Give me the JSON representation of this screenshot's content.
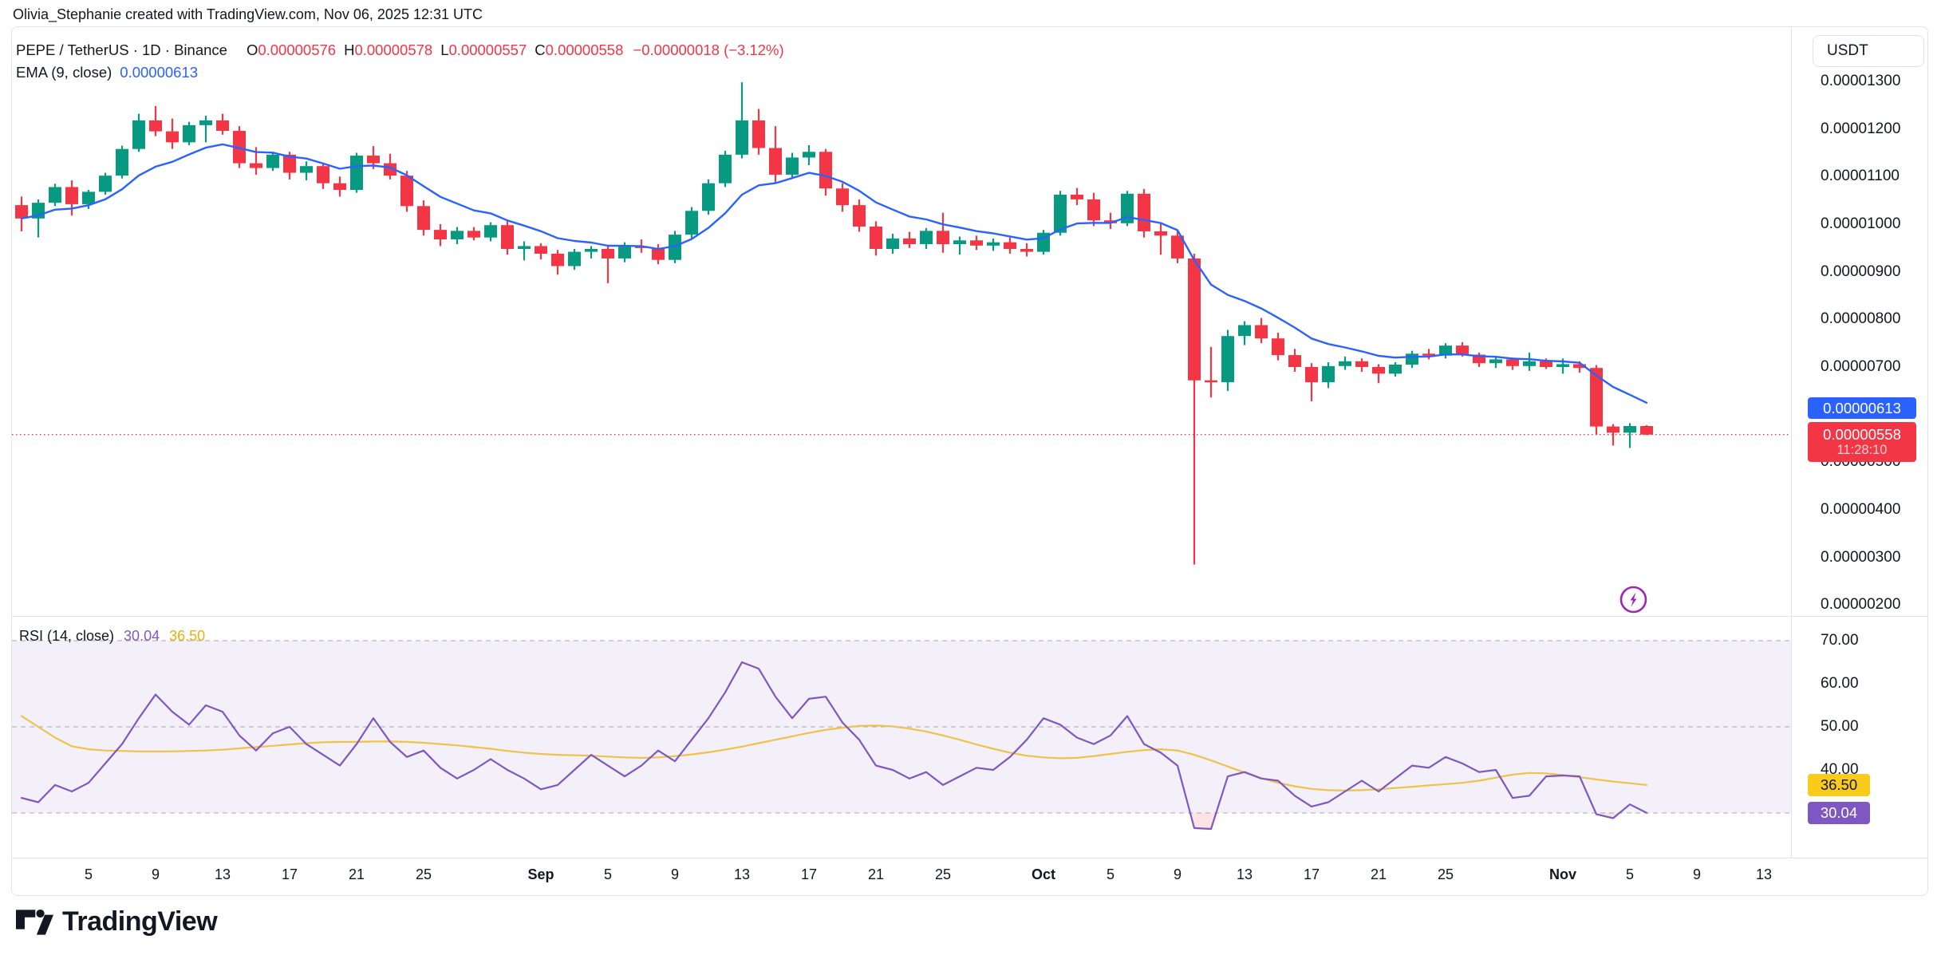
{
  "header": {
    "title": "Olivia_Stephanie created with TradingView.com, Nov 06, 2025 12:31 UTC"
  },
  "toolbar": {
    "currency_button": "USDT"
  },
  "legend": {
    "symbol": "PEPE / TetherUS · 1D · Binance",
    "ohlc": {
      "o_label": "O",
      "o": "0.00000576",
      "h_label": "H",
      "h": "0.00000578",
      "l_label": "L",
      "l": "0.00000557",
      "c_label": "C",
      "c": "0.00000558",
      "change": "−0.00000018 (−3.12%)"
    },
    "ema": {
      "label": "EMA (9, close)",
      "value": "0.00000613"
    }
  },
  "price_axis": {
    "labels": [
      {
        "text": "0.00001300",
        "v": 1300
      },
      {
        "text": "0.00001200",
        "v": 1200
      },
      {
        "text": "0.00001100",
        "v": 1100
      },
      {
        "text": "0.00001000",
        "v": 1000
      },
      {
        "text": "0.00000900",
        "v": 900
      },
      {
        "text": "0.00000800",
        "v": 800
      },
      {
        "text": "0.00000700",
        "v": 700
      },
      {
        "text": "0.00000500",
        "v": 500
      },
      {
        "text": "0.00000400",
        "v": 400
      },
      {
        "text": "0.00000300",
        "v": 300
      },
      {
        "text": "0.00000200",
        "v": 200
      }
    ],
    "ema_badge": "0.00000613",
    "price_badge": "0.00000558",
    "countdown": "11:28:10"
  },
  "rsi_panel": {
    "legend_label": "RSI (14, close)",
    "rsi_value": "30.04",
    "ma_value": "36.50",
    "axis_labels": [
      {
        "text": "70.00",
        "r": 70
      },
      {
        "text": "60.00",
        "r": 60
      },
      {
        "text": "50.00",
        "r": 50
      },
      {
        "text": "40.00",
        "r": 40
      }
    ]
  },
  "time_axis": {
    "labels": [
      {
        "text": "5",
        "i": 4
      },
      {
        "text": "9",
        "i": 8
      },
      {
        "text": "13",
        "i": 12
      },
      {
        "text": "17",
        "i": 16
      },
      {
        "text": "21",
        "i": 20
      },
      {
        "text": "25",
        "i": 24
      },
      {
        "text": "Sep",
        "i": 31,
        "month": true
      },
      {
        "text": "5",
        "i": 35
      },
      {
        "text": "9",
        "i": 39
      },
      {
        "text": "13",
        "i": 43
      },
      {
        "text": "17",
        "i": 47
      },
      {
        "text": "21",
        "i": 51
      },
      {
        "text": "25",
        "i": 55
      },
      {
        "text": "Oct",
        "i": 61,
        "month": true
      },
      {
        "text": "5",
        "i": 65
      },
      {
        "text": "9",
        "i": 69
      },
      {
        "text": "13",
        "i": 73
      },
      {
        "text": "17",
        "i": 77
      },
      {
        "text": "21",
        "i": 81
      },
      {
        "text": "25",
        "i": 85
      },
      {
        "text": "Nov",
        "i": 92,
        "month": true
      },
      {
        "text": "5",
        "i": 96
      },
      {
        "text": "9",
        "i": 100
      },
      {
        "text": "13",
        "i": 104
      }
    ]
  },
  "footer": {
    "logo_text": "TradingView"
  },
  "colors": {
    "up": "#089981",
    "down": "#F23645",
    "ema": "#2962FF",
    "rsi_line": "#7E57C2",
    "rsi_ma_line": "#EFC24A",
    "rsi_band_fill": "rgba(126,87,194,0.09)",
    "oversold_fill": "rgba(242,54,69,0.14)",
    "grid_dash": "#A7AAB2",
    "separator": "#E0E3EB",
    "badge_blue": "#2962FF",
    "badge_red": "#F23645",
    "badge_yellow": "#F8CB1C",
    "badge_purple": "#7E57C2",
    "flash_icon": "#9C27B0",
    "price_line": "#F23645"
  },
  "chart_data": {
    "type": "candlestick",
    "title": "PEPE / TetherUS · 1D · Binance",
    "price_unit_note": "OHLC values are ×1e-8 USDT (1040 = 0.00001040); consecutive daily bars Aug 1 – Nov 6, 2025",
    "ylim": [
      200,
      1300
    ],
    "current_price": 558,
    "candles": [
      [
        1040,
        1058,
        985,
        1012
      ],
      [
        1012,
        1052,
        972,
        1045
      ],
      [
        1045,
        1085,
        1038,
        1078
      ],
      [
        1078,
        1092,
        1018,
        1042
      ],
      [
        1042,
        1072,
        1032,
        1068
      ],
      [
        1068,
        1108,
        1062,
        1102
      ],
      [
        1102,
        1165,
        1096,
        1158
      ],
      [
        1158,
        1232,
        1152,
        1218
      ],
      [
        1218,
        1248,
        1185,
        1195
      ],
      [
        1195,
        1222,
        1158,
        1172
      ],
      [
        1172,
        1215,
        1166,
        1208
      ],
      [
        1208,
        1228,
        1172,
        1218
      ],
      [
        1218,
        1232,
        1188,
        1196
      ],
      [
        1196,
        1206,
        1118,
        1128
      ],
      [
        1128,
        1162,
        1104,
        1118
      ],
      [
        1118,
        1152,
        1112,
        1146
      ],
      [
        1146,
        1152,
        1094,
        1108
      ],
      [
        1108,
        1132,
        1092,
        1122
      ],
      [
        1122,
        1128,
        1074,
        1086
      ],
      [
        1086,
        1100,
        1058,
        1072
      ],
      [
        1072,
        1150,
        1066,
        1144
      ],
      [
        1144,
        1164,
        1116,
        1128
      ],
      [
        1128,
        1148,
        1094,
        1102
      ],
      [
        1102,
        1112,
        1026,
        1038
      ],
      [
        1038,
        1050,
        976,
        988
      ],
      [
        988,
        1000,
        954,
        968
      ],
      [
        968,
        994,
        958,
        986
      ],
      [
        986,
        994,
        966,
        972
      ],
      [
        972,
        1004,
        964,
        998
      ],
      [
        998,
        1008,
        936,
        948
      ],
      [
        948,
        964,
        924,
        954
      ],
      [
        954,
        960,
        926,
        938
      ],
      [
        938,
        946,
        894,
        912
      ],
      [
        912,
        948,
        904,
        942
      ],
      [
        942,
        954,
        928,
        948
      ],
      [
        948,
        956,
        876,
        928
      ],
      [
        928,
        962,
        920,
        954
      ],
      [
        954,
        968,
        940,
        950
      ],
      [
        950,
        958,
        916,
        925
      ],
      [
        925,
        986,
        918,
        978
      ],
      [
        978,
        1036,
        970,
        1028
      ],
      [
        1028,
        1094,
        1020,
        1086
      ],
      [
        1086,
        1154,
        1078,
        1146
      ],
      [
        1146,
        1298,
        1138,
        1218
      ],
      [
        1218,
        1242,
        1146,
        1160
      ],
      [
        1160,
        1206,
        1088,
        1104
      ],
      [
        1104,
        1150,
        1096,
        1140
      ],
      [
        1140,
        1166,
        1124,
        1152
      ],
      [
        1152,
        1158,
        1060,
        1075
      ],
      [
        1075,
        1086,
        1026,
        1040
      ],
      [
        1040,
        1052,
        984,
        995
      ],
      [
        995,
        1006,
        934,
        948
      ],
      [
        948,
        980,
        938,
        970
      ],
      [
        970,
        984,
        950,
        958
      ],
      [
        958,
        992,
        948,
        986
      ],
      [
        986,
        1024,
        940,
        958
      ],
      [
        958,
        974,
        936,
        966
      ],
      [
        966,
        976,
        946,
        955
      ],
      [
        955,
        970,
        944,
        962
      ],
      [
        962,
        972,
        938,
        948
      ],
      [
        948,
        960,
        932,
        942
      ],
      [
        942,
        988,
        936,
        982
      ],
      [
        982,
        1070,
        976,
        1062
      ],
      [
        1062,
        1076,
        1040,
        1052
      ],
      [
        1052,
        1066,
        996,
        1008
      ],
      [
        1008,
        1024,
        990,
        1002
      ],
      [
        1002,
        1070,
        996,
        1064
      ],
      [
        1064,
        1074,
        972,
        985
      ],
      [
        985,
        1004,
        936,
        976
      ],
      [
        976,
        986,
        918,
        928
      ],
      [
        928,
        938,
        285,
        672
      ],
      [
        672,
        742,
        636,
        668
      ],
      [
        668,
        778,
        650,
        765
      ],
      [
        765,
        796,
        746,
        788
      ],
      [
        788,
        803,
        750,
        760
      ],
      [
        760,
        772,
        714,
        725
      ],
      [
        725,
        738,
        690,
        700
      ],
      [
        700,
        708,
        628,
        668
      ],
      [
        668,
        710,
        656,
        702
      ],
      [
        702,
        722,
        694,
        712
      ],
      [
        712,
        718,
        690,
        700
      ],
      [
        700,
        706,
        666,
        686
      ],
      [
        686,
        710,
        680,
        705
      ],
      [
        705,
        734,
        698,
        728
      ],
      [
        728,
        738,
        716,
        724
      ],
      [
        724,
        750,
        718,
        745
      ],
      [
        745,
        752,
        722,
        726
      ],
      [
        726,
        730,
        700,
        708
      ],
      [
        708,
        722,
        698,
        716
      ],
      [
        716,
        720,
        694,
        702
      ],
      [
        702,
        730,
        692,
        712
      ],
      [
        712,
        718,
        696,
        700
      ],
      [
        700,
        718,
        686,
        706
      ],
      [
        706,
        712,
        688,
        698
      ],
      [
        698,
        704,
        558,
        575
      ],
      [
        575,
        580,
        535,
        562
      ],
      [
        562,
        582,
        530,
        576
      ],
      [
        576,
        578,
        557,
        558
      ]
    ],
    "indicators": {
      "ema": {
        "period": 9,
        "source": "close",
        "last_label": "0.00000613"
      },
      "rsi": {
        "period": 14,
        "source": "close",
        "last": 30.04,
        "levels": [
          70,
          50,
          30
        ],
        "values": [
          33.5,
          32.5,
          36.5,
          35,
          37,
          41.5,
          46,
          52,
          57.5,
          53.5,
          50.5,
          55,
          53.5,
          48,
          44.5,
          48.5,
          50,
          46,
          43.5,
          41,
          46,
          52,
          46.5,
          43,
          44.5,
          40.5,
          38,
          40,
          42.5,
          40,
          38,
          35.5,
          36.5,
          40,
          43.5,
          41,
          38.5,
          41,
          44.5,
          42,
          47,
          52,
          58,
          65,
          63.5,
          57,
          52,
          56.5,
          57,
          51,
          47,
          41,
          40,
          38,
          39.5,
          36.5,
          38.5,
          40.5,
          40,
          43,
          47,
          52,
          50.5,
          47.5,
          46,
          48,
          52.5,
          46,
          44,
          41,
          26.5,
          26.3,
          38.5,
          39.5,
          38,
          37.5,
          34,
          31.5,
          32.5,
          35,
          37.5,
          35,
          38,
          41,
          40.5,
          43,
          41.5,
          39.5,
          40,
          33.5,
          34,
          38.5,
          38.7,
          38.5,
          29.7,
          28.8,
          32,
          30.04
        ]
      },
      "rsi_ma": {
        "period": 14,
        "last": 36.5,
        "values": [
          52.5,
          50,
          47.5,
          45.5,
          44.8,
          44.5,
          44.4,
          44.3,
          44.3,
          44.3,
          44.4,
          44.5,
          44.7,
          45,
          45.3,
          45.6,
          45.9,
          46.2,
          46.4,
          46.5,
          46.5,
          46.6,
          46.6,
          46.5,
          46.3,
          46,
          45.7,
          45.3,
          44.9,
          44.4,
          44,
          43.7,
          43.5,
          43.4,
          43.3,
          43.1,
          42.9,
          42.8,
          42.9,
          43.2,
          43.6,
          44.1,
          44.7,
          45.4,
          46.2,
          47,
          47.8,
          48.6,
          49.3,
          49.8,
          50.2,
          50.3,
          50.1,
          49.6,
          48.9,
          48,
          47,
          45.9,
          44.9,
          44,
          43.3,
          42.9,
          42.7,
          42.8,
          43.2,
          43.7,
          44.2,
          44.6,
          44.8,
          44.5,
          43.5,
          42.2,
          40.8,
          39.4,
          38.1,
          37,
          36.2,
          35.6,
          35.3,
          35.2,
          35.3,
          35.5,
          35.8,
          36.1,
          36.4,
          36.7,
          37,
          37.5,
          38.2,
          38.9,
          39.3,
          39.2,
          38.8,
          38.3,
          37.8,
          37.3,
          36.9,
          36.5
        ]
      }
    }
  }
}
